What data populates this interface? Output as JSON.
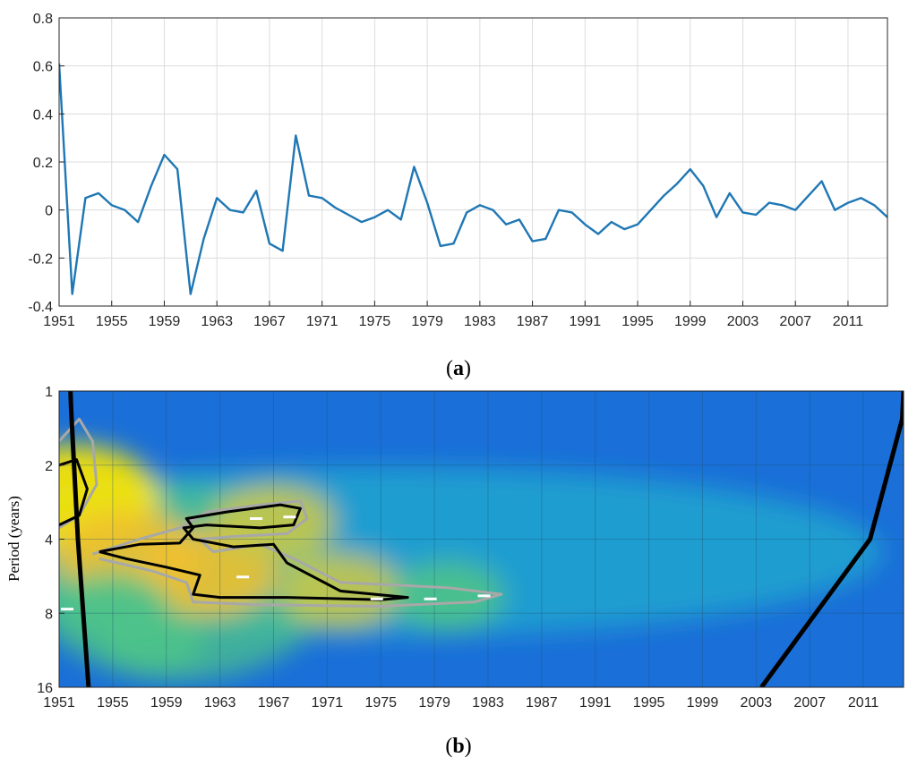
{
  "chart_data": [
    {
      "type": "line",
      "panel_label": "a",
      "title": "",
      "xlabel": "",
      "ylabel": "",
      "xlim": [
        1951,
        2014
      ],
      "ylim": [
        -0.4,
        0.8
      ],
      "yticks": [
        -0.4,
        -0.2,
        0,
        0.2,
        0.4,
        0.6,
        0.8
      ],
      "ytick_labels": [
        "-0.4",
        "-0.2",
        "0",
        "0.2",
        "0.4",
        "0.6",
        "0.8"
      ],
      "xticks": [
        1951,
        1955,
        1959,
        1963,
        1967,
        1971,
        1975,
        1979,
        1983,
        1987,
        1991,
        1995,
        1999,
        2003,
        2007,
        2011
      ],
      "xtick_labels": [
        "1951",
        "1955",
        "1959",
        "1963",
        "1967",
        "1971",
        "1975",
        "1979",
        "1983",
        "1987",
        "1991",
        "1995",
        "1999",
        "2003",
        "2007",
        "2011"
      ],
      "grid": true,
      "line_color": "#1f77b4",
      "series": [
        {
          "x": [
            1951,
            1952,
            1953,
            1954,
            1955,
            1956,
            1957,
            1958,
            1959,
            1960,
            1961,
            1962,
            1963,
            1964,
            1965,
            1966,
            1967,
            1968,
            1969,
            1970,
            1971,
            1972,
            1973,
            1974,
            1975,
            1976,
            1977,
            1978,
            1979,
            1980,
            1981,
            1982,
            1983,
            1984,
            1985,
            1986,
            1987,
            1988,
            1989,
            1990,
            1991,
            1992,
            1993,
            1994,
            1995,
            1996,
            1997,
            1998,
            1999,
            2000,
            2001,
            2002,
            2003,
            2004,
            2005,
            2006,
            2007,
            2008,
            2009,
            2010,
            2011,
            2012,
            2013,
            2014
          ],
          "values": [
            0.61,
            -0.35,
            0.05,
            0.07,
            0.02,
            0.0,
            -0.05,
            0.1,
            0.23,
            0.17,
            -0.35,
            -0.12,
            0.05,
            0.0,
            -0.01,
            0.08,
            -0.14,
            -0.17,
            0.31,
            0.06,
            0.05,
            0.01,
            -0.02,
            -0.05,
            -0.03,
            0.0,
            -0.04,
            0.18,
            0.03,
            -0.15,
            -0.14,
            -0.01,
            0.02,
            0.0,
            -0.06,
            -0.04,
            -0.13,
            -0.12,
            0.0,
            -0.01,
            -0.06,
            -0.1,
            -0.05,
            -0.08,
            -0.06,
            0.0,
            0.06,
            0.11,
            0.17,
            0.1,
            -0.03,
            0.07,
            -0.01,
            -0.02,
            0.03,
            0.02,
            0.0,
            0.06,
            0.12,
            0.0,
            0.03,
            0.05,
            0.02,
            -0.03
          ]
        }
      ]
    },
    {
      "type": "heatmap",
      "panel_label": "b",
      "title": "",
      "xlabel": "",
      "ylabel": "Period (years)",
      "xlim": [
        1951,
        2014
      ],
      "y_scale": "log2",
      "ylim": [
        1,
        16
      ],
      "yticks": [
        1,
        2,
        4,
        8,
        16
      ],
      "ytick_labels": [
        "1",
        "2",
        "4",
        "8",
        "16"
      ],
      "xticks": [
        1951,
        1955,
        1959,
        1963,
        1967,
        1971,
        1975,
        1979,
        1983,
        1987,
        1991,
        1995,
        1999,
        2003,
        2007,
        2011
      ],
      "xtick_labels": [
        "1951",
        "1955",
        "1959",
        "1963",
        "1967",
        "1971",
        "1975",
        "1979",
        "1983",
        "1987",
        "1991",
        "1995",
        "1999",
        "2003",
        "2007",
        "2011"
      ],
      "grid": true,
      "colormap": [
        "#1a6fd8",
        "#22a6cf",
        "#4ec38a",
        "#c6c64a",
        "#f0c030",
        "#ffe800"
      ],
      "power_peaks": [
        {
          "year": 1952,
          "period": 2.7,
          "level": 1.0
        },
        {
          "year": 1956,
          "period": 4.6,
          "level": 0.75
        },
        {
          "year": 1962,
          "period": 5.5,
          "level": 0.7
        },
        {
          "year": 1967,
          "period": 3.4,
          "level": 0.55
        },
        {
          "year": 1972,
          "period": 6.5,
          "level": 0.55
        },
        {
          "year": 1980,
          "period": 6.8,
          "level": 0.45
        },
        {
          "year": 1955,
          "period": 7.6,
          "level": 0.45
        },
        {
          "year": 1958,
          "period": 10.5,
          "level": 0.35
        }
      ],
      "cone_of_influence": {
        "left": {
          "year": [
            1953.2,
            1952.4,
            1951.9,
            1951.85
          ],
          "period": [
            16,
            4,
            1.2,
            1
          ]
        },
        "right": {
          "year": [
            2003.4,
            2011.5,
            2013.9,
            2014.0
          ],
          "period": [
            16,
            4,
            1.3,
            1
          ]
        }
      },
      "contours_95": [
        {
          "color": "#000000",
          "year": [
            1951.0,
            1952.3,
            1953.1,
            1952.5,
            1951.0
          ],
          "period": [
            2.0,
            1.9,
            2.5,
            3.2,
            3.5
          ]
        },
        {
          "color": "#000000",
          "year": [
            1954.0,
            1957.0,
            1960.0,
            1961.0,
            1960.5,
            1963.5,
            1967.5,
            1969.0,
            1968.5,
            1966.0,
            1962.0,
            1960.3,
            1961.0,
            1964.0,
            1967.0,
            1968.0,
            1972.0,
            1977.0,
            1975.0,
            1968.0,
            1963.0,
            1961.0,
            1961.5,
            1959.0,
            1956.0,
            1954.0
          ],
          "period": [
            4.5,
            4.2,
            4.15,
            3.6,
            3.3,
            3.1,
            2.9,
            3.0,
            3.5,
            3.6,
            3.5,
            3.6,
            4.0,
            4.3,
            4.2,
            5.0,
            6.5,
            6.9,
            7.05,
            6.9,
            6.9,
            6.7,
            5.6,
            5.2,
            4.8,
            4.5
          ]
        }
      ],
      "contours_outer": [
        {
          "color": "#a8a8a8",
          "year": [
            1951.0,
            1952.5,
            1953.5,
            1953.8,
            1952.5,
            1951.0
          ],
          "period": [
            1.6,
            1.3,
            1.6,
            2.4,
            3.2,
            3.6
          ]
        },
        {
          "color": "#a8a8a8",
          "year": [
            1953.5,
            1957.0,
            1960.0,
            1962.0,
            1966.0,
            1969.0,
            1969.5,
            1968.0,
            1964.0,
            1961.5,
            1962.5,
            1966.0,
            1968.5,
            1972.0,
            1980.0,
            1984.0,
            1982.0,
            1975.0,
            1966.0,
            1961.0,
            1960.5,
            1958.0,
            1954.0
          ],
          "period": [
            4.6,
            4.0,
            3.6,
            3.1,
            2.9,
            2.8,
            3.3,
            3.8,
            3.9,
            4.0,
            4.5,
            4.2,
            4.8,
            6.0,
            6.3,
            6.7,
            7.2,
            7.5,
            7.4,
            7.2,
            6.0,
            5.4,
            4.8
          ]
        }
      ],
      "dash_markers": [
        {
          "year": 1951.6,
          "period": 7.7
        },
        {
          "year": 1965.7,
          "period": 3.3
        },
        {
          "year": 1968.2,
          "period": 3.25
        },
        {
          "year": 1964.7,
          "period": 5.7
        },
        {
          "year": 1974.7,
          "period": 7.0
        },
        {
          "year": 1978.7,
          "period": 7.0
        },
        {
          "year": 1982.7,
          "period": 6.8
        }
      ]
    }
  ]
}
